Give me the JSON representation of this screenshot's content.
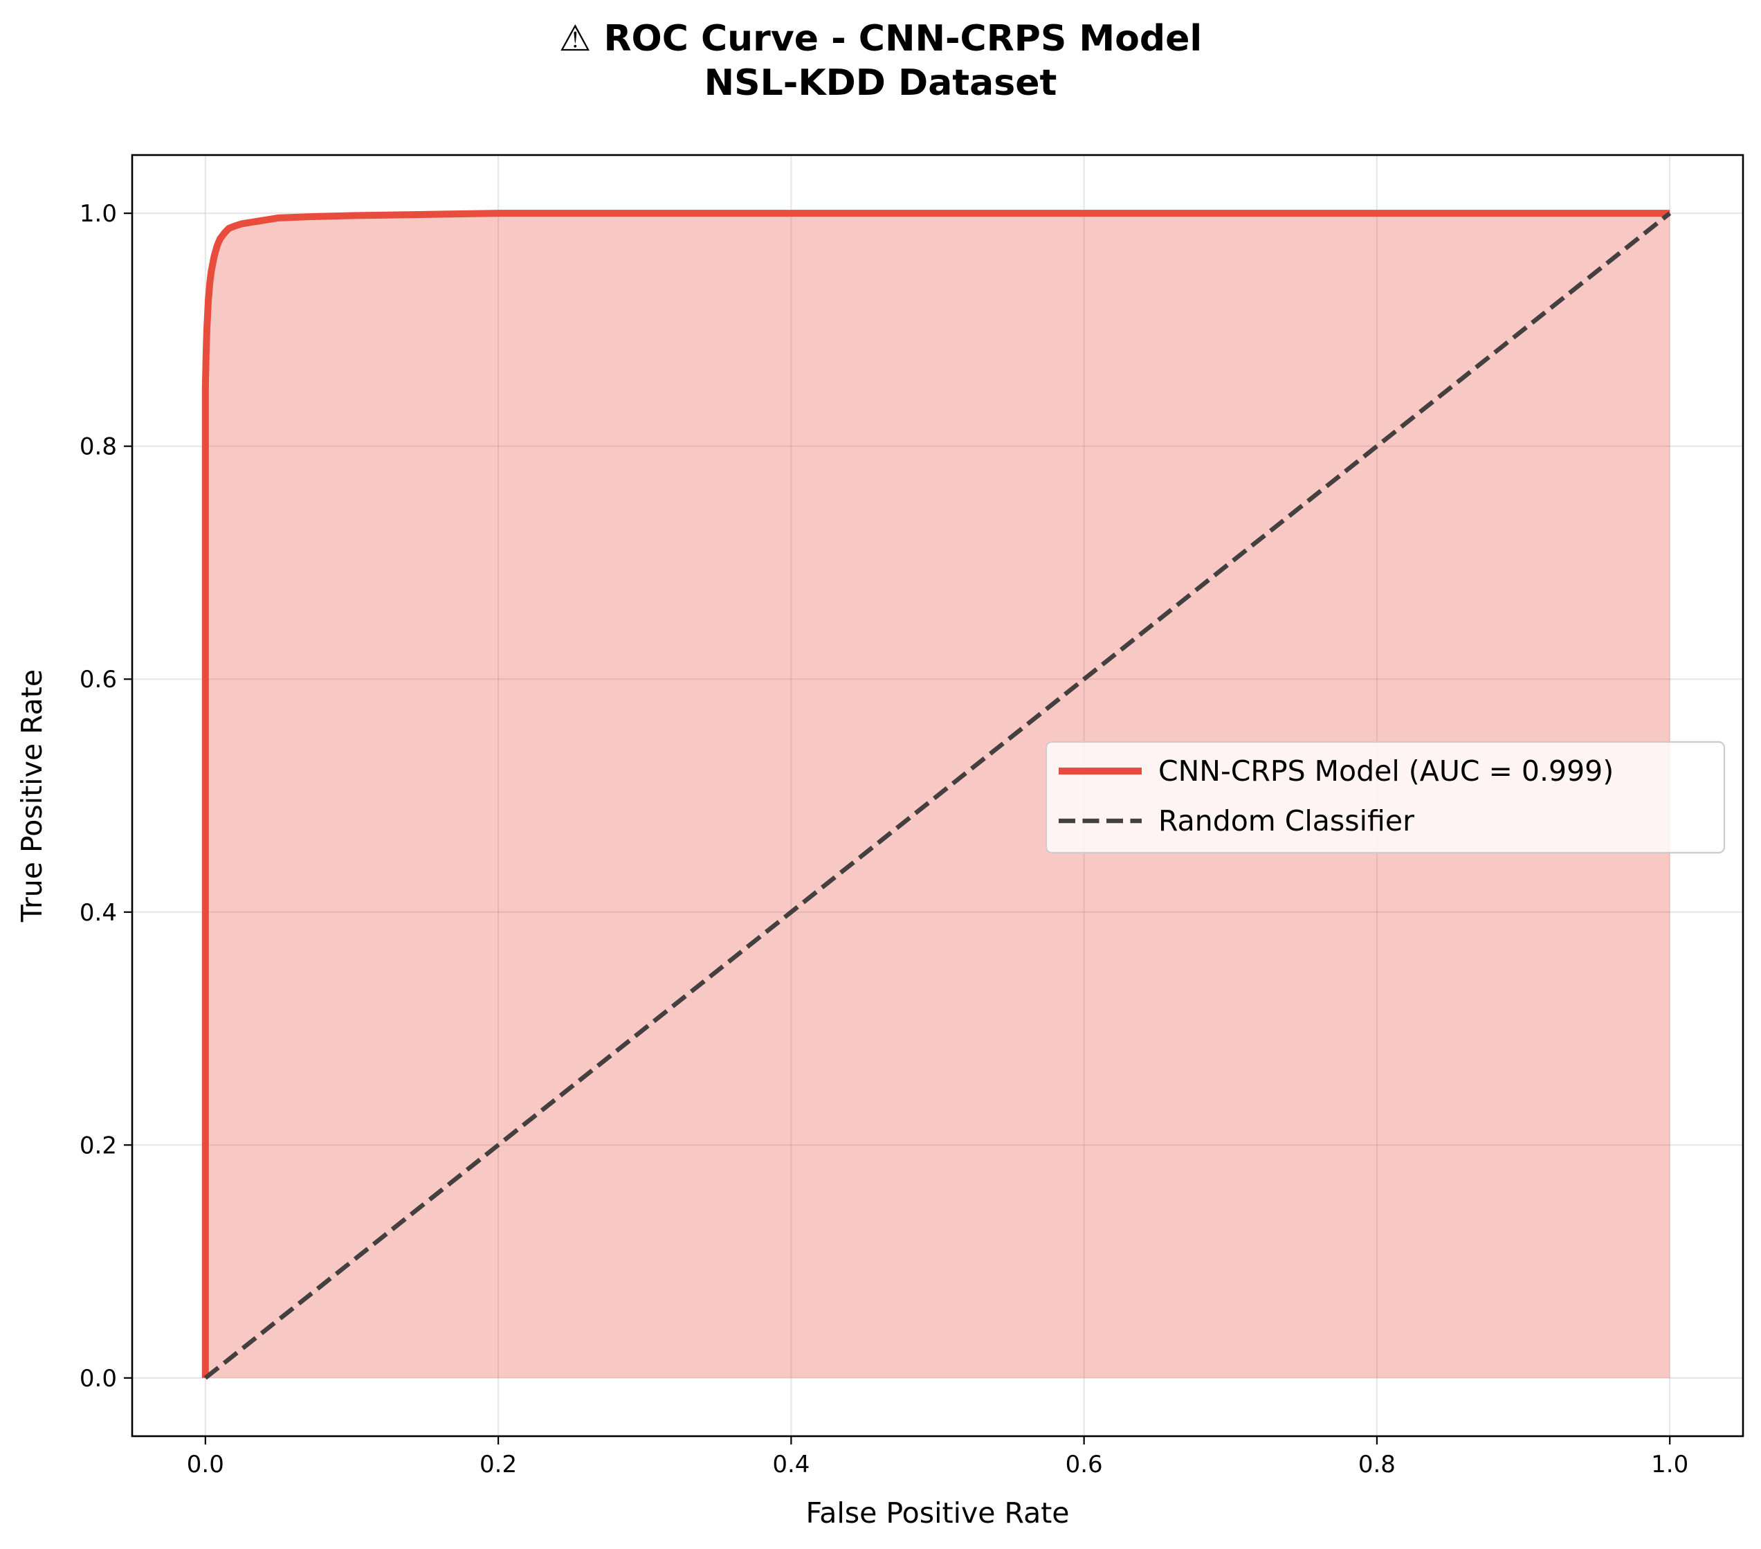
{
  "chart_data": {
    "type": "line",
    "title": "⚠ ROC Curve - CNN-CRPS Model",
    "subtitle": "NSL-KDD Dataset",
    "xlabel": "False Positive Rate",
    "ylabel": "True Positive Rate",
    "xlim": [
      -0.05,
      1.05
    ],
    "ylim": [
      -0.05,
      1.05
    ],
    "x_ticks": [
      "0.0",
      "0.2",
      "0.4",
      "0.6",
      "0.8",
      "1.0"
    ],
    "y_ticks": [
      "0.0",
      "0.2",
      "0.4",
      "0.6",
      "0.8",
      "1.0"
    ],
    "x_tick_values": [
      0,
      0.2,
      0.4,
      0.6,
      0.8,
      1.0
    ],
    "y_tick_values": [
      0,
      0.2,
      0.4,
      0.6,
      0.8,
      1.0
    ],
    "grid": true,
    "legend_position": "center-right",
    "series": [
      {
        "name": "CNN-CRPS Model (AUC = 0.999)",
        "color": "#e74c3c",
        "style": "solid",
        "filled": true,
        "fill_color": "#e74c3c",
        "fill_opacity": 0.3,
        "x": [
          0,
          0,
          0.0005,
          0.001,
          0.002,
          0.003,
          0.004,
          0.006,
          0.008,
          0.01,
          0.013,
          0.016,
          0.02,
          0.025,
          0.03,
          0.04,
          0.05,
          0.07,
          0.1,
          0.15,
          0.2,
          0.3,
          0.5,
          0.7,
          0.9,
          1.0
        ],
        "y": [
          0,
          0.85,
          0.88,
          0.9,
          0.925,
          0.94,
          0.95,
          0.963,
          0.972,
          0.978,
          0.983,
          0.987,
          0.989,
          0.991,
          0.992,
          0.994,
          0.996,
          0.997,
          0.998,
          0.999,
          1.0,
          1.0,
          1.0,
          1.0,
          1.0,
          1.0
        ]
      },
      {
        "name": "Random Classifier",
        "color": "#444040",
        "style": "dashed",
        "filled": false,
        "x": [
          0,
          1
        ],
        "y": [
          0,
          1
        ]
      }
    ]
  }
}
